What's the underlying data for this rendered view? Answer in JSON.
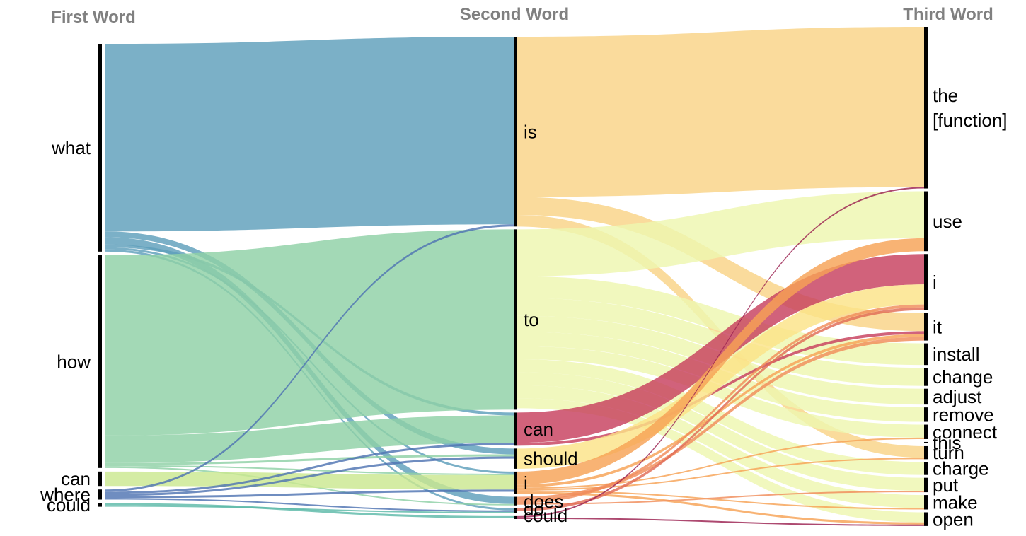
{
  "headers": {
    "first": "First Word",
    "second": "Second Word",
    "third": "Third Word"
  },
  "chart_data": {
    "type": "sankey",
    "columns": [
      "First Word",
      "Second Word",
      "Third Word"
    ],
    "nodes": {
      "first": [
        {
          "id": "what",
          "label": "what"
        },
        {
          "id": "how",
          "label": "how"
        },
        {
          "id": "can",
          "label": "can"
        },
        {
          "id": "where",
          "label": "where"
        },
        {
          "id": "could",
          "label": "could"
        }
      ],
      "second": [
        {
          "id": "is",
          "label": "is"
        },
        {
          "id": "to",
          "label": "to"
        },
        {
          "id": "can2",
          "label": "can"
        },
        {
          "id": "should",
          "label": "should"
        },
        {
          "id": "i2",
          "label": "i"
        },
        {
          "id": "does",
          "label": "does"
        },
        {
          "id": "do",
          "label": "do"
        },
        {
          "id": "could2",
          "label": "could"
        }
      ],
      "third": [
        {
          "id": "thefunction",
          "label": "the\n[function]"
        },
        {
          "id": "use",
          "label": "use"
        },
        {
          "id": "i3",
          "label": "i"
        },
        {
          "id": "it",
          "label": "it"
        },
        {
          "id": "install",
          "label": "install"
        },
        {
          "id": "change",
          "label": "change"
        },
        {
          "id": "adjust",
          "label": "adjust"
        },
        {
          "id": "remove",
          "label": "remove"
        },
        {
          "id": "connect",
          "label": "connect"
        },
        {
          "id": "this",
          "label": "this"
        },
        {
          "id": "turn",
          "label": "turn"
        },
        {
          "id": "charge",
          "label": "charge"
        },
        {
          "id": "put",
          "label": "put"
        },
        {
          "id": "make",
          "label": "make"
        },
        {
          "id": "open",
          "label": "open"
        }
      ]
    },
    "links_first_to_second": [
      {
        "source": "what",
        "target": "is",
        "value": 260
      },
      {
        "source": "what",
        "target": "should",
        "value": 8
      },
      {
        "source": "what",
        "target": "does",
        "value": 10
      },
      {
        "source": "what",
        "target": "can2",
        "value": 4
      },
      {
        "source": "what",
        "target": "i2",
        "value": 3
      },
      {
        "source": "what",
        "target": "do",
        "value": 3
      },
      {
        "source": "how",
        "target": "to",
        "value": 250
      },
      {
        "source": "how",
        "target": "can2",
        "value": 38
      },
      {
        "source": "how",
        "target": "should",
        "value": 3
      },
      {
        "source": "how",
        "target": "i2",
        "value": 2
      },
      {
        "source": "how",
        "target": "does",
        "value": 2
      },
      {
        "source": "can",
        "target": "i2",
        "value": 20
      },
      {
        "source": "where",
        "target": "is",
        "value": 3
      },
      {
        "source": "where",
        "target": "can2",
        "value": 3
      },
      {
        "source": "where",
        "target": "should",
        "value": 3
      },
      {
        "source": "where",
        "target": "i2",
        "value": 3
      },
      {
        "source": "where",
        "target": "do",
        "value": 2
      },
      {
        "source": "could",
        "target": "could2",
        "value": 3
      },
      {
        "source": "could",
        "target": "do",
        "value": 2
      }
    ],
    "links_second_to_third": [
      {
        "source": "is",
        "target": "thefunction",
        "value": 222
      },
      {
        "source": "is",
        "target": "it",
        "value": 25
      },
      {
        "source": "is",
        "target": "turn",
        "value": 16
      },
      {
        "source": "to",
        "target": "use",
        "value": 65
      },
      {
        "source": "to",
        "target": "install",
        "value": 30
      },
      {
        "source": "to",
        "target": "change",
        "value": 25
      },
      {
        "source": "to",
        "target": "adjust",
        "value": 22
      },
      {
        "source": "to",
        "target": "remove",
        "value": 20
      },
      {
        "source": "to",
        "target": "connect",
        "value": 18
      },
      {
        "source": "to",
        "target": "charge",
        "value": 18
      },
      {
        "source": "to",
        "target": "put",
        "value": 18
      },
      {
        "source": "to",
        "target": "make",
        "value": 18
      },
      {
        "source": "to",
        "target": "open",
        "value": 14
      },
      {
        "source": "can2",
        "target": "i3",
        "value": 42
      },
      {
        "source": "can2",
        "target": "it",
        "value": 4
      },
      {
        "source": "should",
        "target": "i3",
        "value": 28
      },
      {
        "source": "i2",
        "target": "use",
        "value": 18
      },
      {
        "source": "i2",
        "target": "it",
        "value": 4
      },
      {
        "source": "i2",
        "target": "connect",
        "value": 2
      },
      {
        "source": "i2",
        "target": "turn",
        "value": 2
      },
      {
        "source": "i2",
        "target": "make",
        "value": 2
      },
      {
        "source": "i2",
        "target": "open",
        "value": 3
      },
      {
        "source": "does",
        "target": "it",
        "value": 5
      },
      {
        "source": "does",
        "target": "i3",
        "value": 4
      },
      {
        "source": "does",
        "target": "put",
        "value": 2
      },
      {
        "source": "do",
        "target": "i3",
        "value": 4
      },
      {
        "source": "could2",
        "target": "thefunction",
        "value": 2
      },
      {
        "source": "could2",
        "target": "open",
        "value": 2
      }
    ],
    "colors": {
      "what": "#5e9fbb",
      "how": "#8fd1a6",
      "can": "#cbe890",
      "where": "#4f74b2",
      "could": "#5dbaa8",
      "is": "#f9d386",
      "to": "#eef6b0",
      "can2": "#c73f5e",
      "should": "#fbe387",
      "i2": "#f7a255",
      "does": "#f08c5a",
      "do": "#e06b55",
      "could2": "#9b2150"
    }
  }
}
